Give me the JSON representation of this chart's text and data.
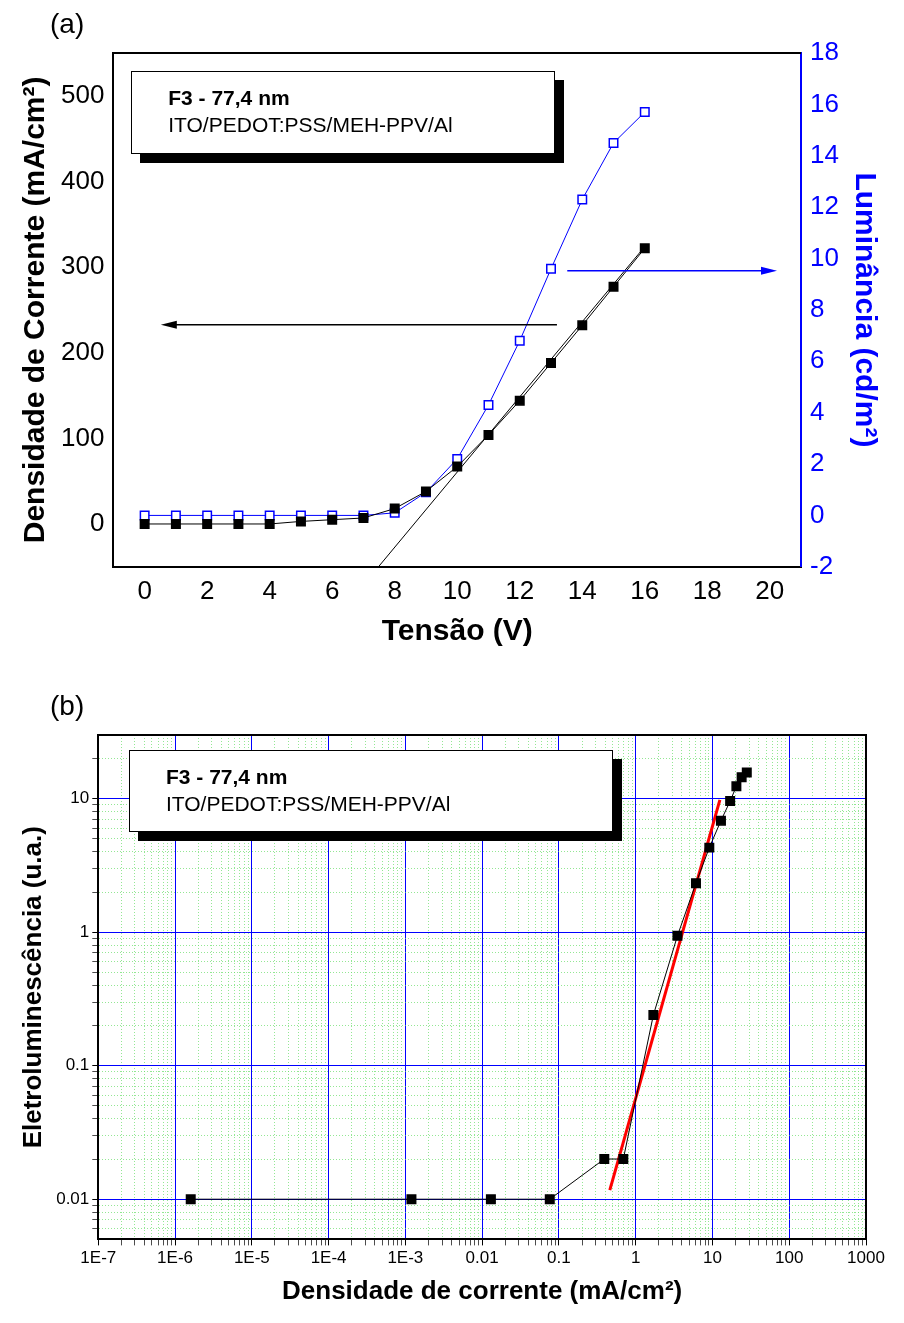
{
  "chart_data": [
    {
      "type": "line",
      "xlabel": "Tensão (V)",
      "ylabel": "Densidade de Corrente (mA/cm²)",
      "y2label": "Luminância (cd/m²)",
      "annotations": [
        "(a)",
        "F3 - 77,4 nm",
        "ITO/PEDOT:PSS/MEH-PPV/Al"
      ],
      "marker": "square",
      "x": [
        0,
        1,
        2,
        3,
        4,
        5,
        6,
        7,
        8,
        9,
        10,
        11,
        12,
        13,
        14,
        15,
        16
      ],
      "xlim": [
        -1,
        21
      ],
      "xticks": [
        0,
        2,
        4,
        6,
        8,
        10,
        12,
        14,
        16,
        18,
        20
      ],
      "ylim": [
        -50,
        550
      ],
      "yticks": [
        0,
        100,
        200,
        300,
        400,
        500
      ],
      "y2lim": [
        -2,
        18
      ],
      "y2ticks": [
        -2,
        0,
        2,
        4,
        6,
        8,
        10,
        12,
        14,
        16,
        18
      ],
      "series": [
        {
          "color": "#000000",
          "values": [
            0,
            0,
            0,
            0,
            0,
            3,
            5,
            7,
            18,
            38,
            67,
            104,
            144,
            188,
            232,
            277,
            322
          ]
        },
        {
          "color": "#0000ff",
          "axis": "y2",
          "values": [
            0,
            0,
            0,
            0,
            0,
            0,
            0,
            0,
            0.1,
            0.9,
            2.2,
            4.3,
            6.8,
            9.6,
            12.3,
            14.5,
            15.7
          ]
        },
        {
          "type": "line",
          "marker": "none",
          "color": "#000000",
          "x": [
            7.48,
            16
          ],
          "values": [
            -50,
            324
          ]
        }
      ]
    },
    {
      "type": "line",
      "xlabel": "Densidade de corrente (mA/cm²)",
      "ylabel": "Eletroluminescência (u.a.)",
      "annotations": [
        "(b)",
        "F3 - 77,4 nm",
        "ITO/PEDOT:PSS/MEH-PPV/Al"
      ],
      "marker": "square",
      "log": "xy",
      "grid": true,
      "x": [
        1.6e-06,
        0.0012,
        0.013,
        0.076,
        0.39,
        0.69,
        1.7,
        3.5,
        6.1,
        9.1,
        12.9,
        17,
        20.5,
        24,
        28
      ],
      "xlim": [
        1e-07,
        1000
      ],
      "xticks": [
        {
          "value": 1e-07,
          "label": "1E-7"
        },
        {
          "value": 1e-06,
          "label": "1E-6"
        },
        {
          "value": 1e-05,
          "label": "1E-5"
        },
        {
          "value": 0.0001,
          "label": "1E-4"
        },
        {
          "value": 0.001,
          "label": "1E-3"
        },
        0.01,
        0.1,
        1,
        10,
        100,
        1000,
        {
          "value": 2e-07,
          "label": null
        },
        {
          "value": 3e-07,
          "label": null
        },
        {
          "value": 4e-07,
          "label": null
        },
        {
          "value": 5e-07,
          "label": null
        },
        {
          "value": 6e-07,
          "label": null
        },
        {
          "value": 7e-07,
          "label": null
        },
        {
          "value": 8e-07,
          "label": null
        },
        {
          "value": 9e-07,
          "label": null
        },
        {
          "value": 2e-06,
          "label": null
        },
        {
          "value": 3e-06,
          "label": null
        },
        {
          "value": 4e-06,
          "label": null
        },
        {
          "value": 5e-06,
          "label": null
        },
        {
          "value": 6e-06,
          "label": null
        },
        {
          "value": 7e-06,
          "label": null
        },
        {
          "value": 8e-06,
          "label": null
        },
        {
          "value": 9e-06,
          "label": null
        },
        {
          "value": 2e-05,
          "label": null
        },
        {
          "value": 3e-05,
          "label": null
        },
        {
          "value": 4e-05,
          "label": null
        },
        {
          "value": 5e-05,
          "label": null
        },
        {
          "value": 6e-05,
          "label": null
        },
        {
          "value": 7e-05,
          "label": null
        },
        {
          "value": 8e-05,
          "label": null
        },
        {
          "value": 9e-05,
          "label": null
        },
        {
          "value": 0.0002,
          "label": null
        },
        {
          "value": 0.0003,
          "label": null
        },
        {
          "value": 0.0004,
          "label": null
        },
        {
          "value": 0.0005,
          "label": null
        },
        {
          "value": 0.0006,
          "label": null
        },
        {
          "value": 0.0007,
          "label": null
        },
        {
          "value": 0.0008,
          "label": null
        },
        {
          "value": 0.0009,
          "label": null
        },
        {
          "value": 0.002,
          "label": null
        },
        {
          "value": 0.003,
          "label": null
        },
        {
          "value": 0.004,
          "label": null
        },
        {
          "value": 0.005,
          "label": null
        },
        {
          "value": 0.006,
          "label": null
        },
        {
          "value": 0.007,
          "label": null
        },
        {
          "value": 0.008,
          "label": null
        },
        {
          "value": 0.009,
          "label": null
        },
        {
          "value": 0.02,
          "label": null
        },
        {
          "value": 0.03,
          "label": null
        },
        {
          "value": 0.04,
          "label": null
        },
        {
          "value": 0.05,
          "label": null
        },
        {
          "value": 0.06,
          "label": null
        },
        {
          "value": 0.07,
          "label": null
        },
        {
          "value": 0.08,
          "label": null
        },
        {
          "value": 0.09,
          "label": null
        },
        {
          "value": 0.2,
          "label": null
        },
        {
          "value": 0.3,
          "label": null
        },
        {
          "value": 0.4,
          "label": null
        },
        {
          "value": 0.5,
          "label": null
        },
        {
          "value": 0.6,
          "label": null
        },
        {
          "value": 0.7,
          "label": null
        },
        {
          "value": 0.8,
          "label": null
        },
        {
          "value": 0.9,
          "label": null
        },
        {
          "value": 2,
          "label": null
        },
        {
          "value": 3,
          "label": null
        },
        {
          "value": 4,
          "label": null
        },
        {
          "value": 5,
          "label": null
        },
        {
          "value": 6,
          "label": null
        },
        {
          "value": 7,
          "label": null
        },
        {
          "value": 8,
          "label": null
        },
        {
          "value": 9,
          "label": null
        },
        {
          "value": 20,
          "label": null
        },
        {
          "value": 30,
          "label": null
        },
        {
          "value": 40,
          "label": null
        },
        {
          "value": 50,
          "label": null
        },
        {
          "value": 60,
          "label": null
        },
        {
          "value": 70,
          "label": null
        },
        {
          "value": 80,
          "label": null
        },
        {
          "value": 90,
          "label": null
        },
        {
          "value": 200,
          "label": null
        },
        {
          "value": 300,
          "label": null
        },
        {
          "value": 400,
          "label": null
        },
        {
          "value": 500,
          "label": null
        },
        {
          "value": 600,
          "label": null
        },
        {
          "value": 700,
          "label": null
        },
        {
          "value": 800,
          "label": null
        },
        {
          "value": 900,
          "label": null
        }
      ],
      "ylim": [
        0.005,
        30
      ],
      "yticks": [
        0.01,
        0.1,
        1,
        10,
        {
          "value": 0.006,
          "label": null
        },
        {
          "value": 0.007,
          "label": null
        },
        {
          "value": 0.008,
          "label": null
        },
        {
          "value": 0.009,
          "label": null
        },
        {
          "value": 0.02,
          "label": null
        },
        {
          "value": 0.03,
          "label": null
        },
        {
          "value": 0.04,
          "label": null
        },
        {
          "value": 0.05,
          "label": null
        },
        {
          "value": 0.06,
          "label": null
        },
        {
          "value": 0.07,
          "label": null
        },
        {
          "value": 0.08,
          "label": null
        },
        {
          "value": 0.09,
          "label": null
        },
        {
          "value": 0.2,
          "label": null
        },
        {
          "value": 0.3,
          "label": null
        },
        {
          "value": 0.4,
          "label": null
        },
        {
          "value": 0.5,
          "label": null
        },
        {
          "value": 0.6,
          "label": null
        },
        {
          "value": 0.7,
          "label": null
        },
        {
          "value": 0.8,
          "label": null
        },
        {
          "value": 0.9,
          "label": null
        },
        {
          "value": 2,
          "label": null
        },
        {
          "value": 3,
          "label": null
        },
        {
          "value": 4,
          "label": null
        },
        {
          "value": 5,
          "label": null
        },
        {
          "value": 6,
          "label": null
        },
        {
          "value": 7,
          "label": null
        },
        {
          "value": 8,
          "label": null
        },
        {
          "value": 9,
          "label": null
        },
        {
          "value": 20,
          "label": null
        }
      ],
      "series": [
        {
          "color": "#000000",
          "values": [
            0.01,
            0.01,
            0.01,
            0.01,
            0.02,
            0.02,
            0.24,
            0.94,
            2.33,
            4.3,
            6.85,
            9.6,
            12.4,
            14.5,
            15.7
          ]
        },
        {
          "type": "line",
          "marker": "none",
          "color": "#ff0000",
          "x": [
            0.46,
            12.5
          ],
          "values": [
            0.0117,
            9.8
          ]
        }
      ]
    }
  ]
}
